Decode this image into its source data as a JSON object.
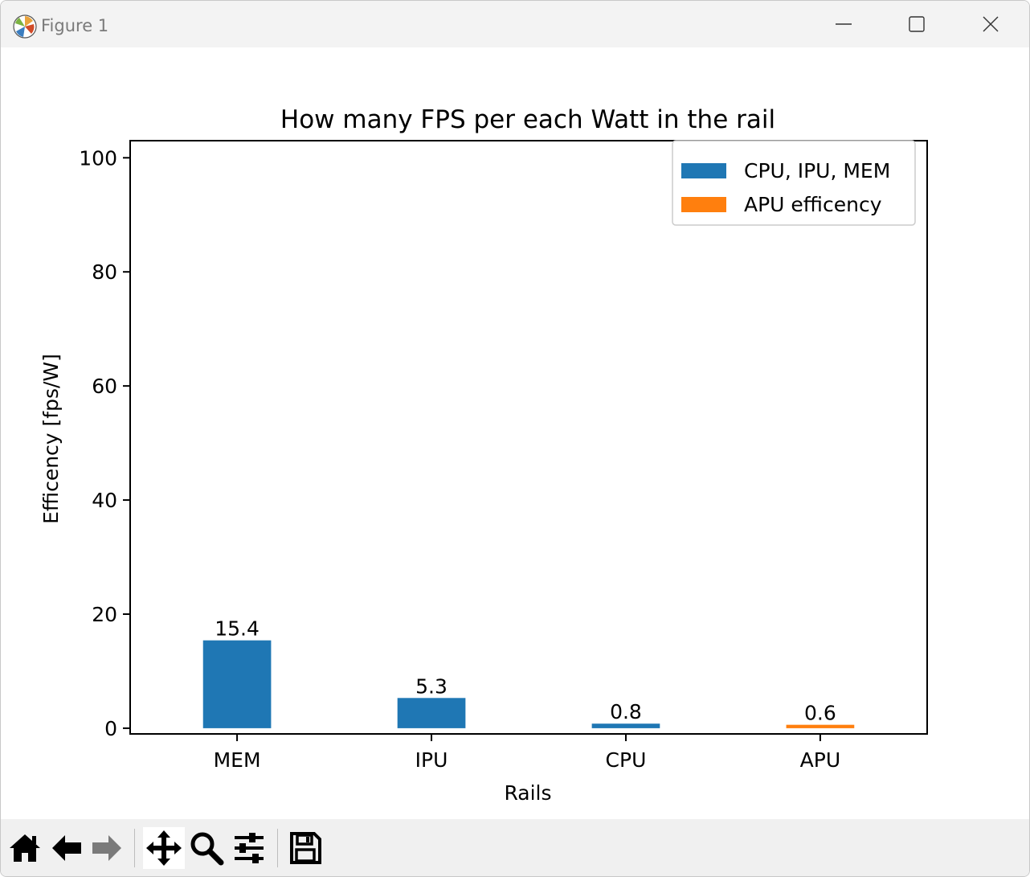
{
  "window": {
    "title": "Figure 1",
    "title_color": "#7a7a7a"
  },
  "toolbar": {
    "tools": [
      {
        "icon": "home-icon"
      },
      {
        "icon": "back-arrow-icon"
      },
      {
        "icon": "forward-arrow-icon"
      },
      {
        "icon": "pan-move-icon",
        "active": true
      },
      {
        "icon": "zoom-magnifier-icon"
      },
      {
        "icon": "configure-subplots-icon"
      },
      {
        "icon": "save-floppy-icon"
      }
    ]
  },
  "chart_data": {
    "type": "bar",
    "title": "How many FPS per each Watt in the rail",
    "xlabel": "Rails",
    "ylabel": "Efficency [fps/W]",
    "categories": [
      "MEM",
      "IPU",
      "CPU",
      "APU"
    ],
    "series": [
      {
        "name": "CPU, IPU, MEM",
        "color": "#1f77b4",
        "values": [
          15.4,
          5.3,
          0.8,
          null
        ]
      },
      {
        "name": "APU efficency",
        "color": "#ff7f0e",
        "values": [
          null,
          null,
          null,
          0.6
        ]
      }
    ],
    "data_labels": [
      "15.4",
      "5.3",
      "0.8",
      "0.6"
    ],
    "ylim": [
      -1,
      103
    ],
    "yticks": [
      0,
      20,
      40,
      60,
      80,
      100
    ],
    "grid": false,
    "legend_position": "upper right"
  }
}
